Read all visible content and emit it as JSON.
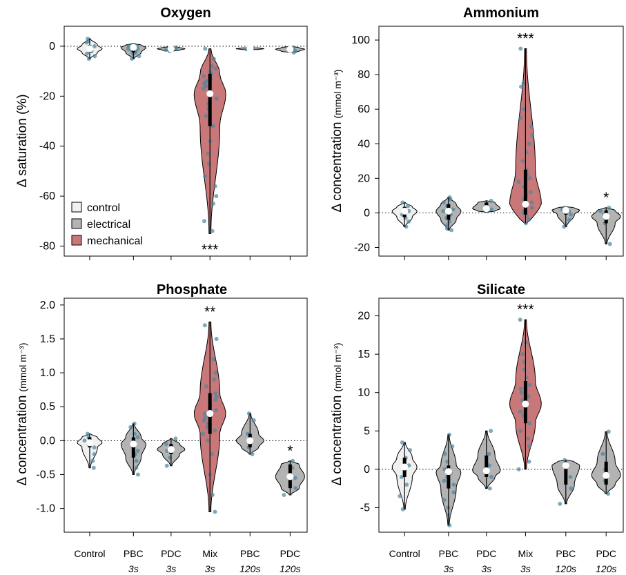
{
  "colors": {
    "control": "#f0f0f0",
    "electrical": "#b3b3b3",
    "mechanical": "#c9787a",
    "dot": "#4a86a0",
    "box": "#000000",
    "median": "#ffffff"
  },
  "legend": {
    "items": [
      {
        "label": "control",
        "group": "control"
      },
      {
        "label": "electrical",
        "group": "electrical"
      },
      {
        "label": "mechanical",
        "group": "mechanical"
      }
    ]
  },
  "x_categories": [
    {
      "name": "Control",
      "duration": ""
    },
    {
      "name": "PBC",
      "duration": "3s"
    },
    {
      "name": "PDC",
      "duration": "3s"
    },
    {
      "name": "Mix",
      "duration": "3s"
    },
    {
      "name": "PBC",
      "duration": "120s"
    },
    {
      "name": "PDC",
      "duration": "120s"
    }
  ],
  "chart_data": [
    {
      "type": "violin",
      "title": "Oxygen",
      "ylabel": "Δ saturation (%)",
      "ylabel_unit": "",
      "ylim": [
        -84,
        8
      ],
      "yticks": [
        0,
        -20,
        -40,
        -60,
        -80
      ],
      "ytick_labels": [
        "0",
        "-20",
        "-40",
        "-60",
        "-80"
      ],
      "groups": [
        "control",
        "electrical",
        "electrical",
        "mechanical",
        "electrical",
        "electrical"
      ],
      "series": [
        {
          "median": -1.0,
          "q1": -2.5,
          "q3": 0.5,
          "min": -5,
          "max": 3,
          "significance": "",
          "points": [
            3,
            1.5,
            0,
            -1,
            -2,
            -3,
            -4,
            -5,
            2,
            -1.5
          ]
        },
        {
          "median": -0.5,
          "q1": -2.5,
          "q3": 0.5,
          "min": -5,
          "max": 1,
          "significance": "",
          "points": [
            0.5,
            0,
            -0.5,
            -1,
            -1.5,
            -2,
            -2.5,
            -3,
            -4,
            -5,
            -1,
            0
          ]
        },
        {
          "median": -1.0,
          "q1": -1.6,
          "q3": -0.5,
          "min": -2,
          "max": -0.2,
          "significance": "",
          "points": [
            -0.5,
            -1,
            -1.5,
            -2
          ]
        },
        {
          "median": -19.0,
          "q1": -32.0,
          "q3": -11.0,
          "min": -75,
          "max": -1,
          "significance": "***",
          "points": [
            -1,
            -5,
            -8,
            -9,
            -10,
            -11,
            -12,
            -13,
            -14,
            -15,
            -16,
            -17,
            -19,
            -21,
            -23,
            -25,
            -28,
            -32,
            -38,
            -43,
            -47,
            -52,
            -56,
            -60,
            -63,
            -70,
            -74
          ]
        },
        {
          "median": -1.0,
          "q1": -1.3,
          "q3": -0.7,
          "min": -1.4,
          "max": -0.6,
          "significance": "",
          "points": [
            -0.8,
            -1,
            -1.2
          ]
        },
        {
          "median": -1.2,
          "q1": -2.0,
          "q3": -0.6,
          "min": -2.5,
          "max": 0,
          "significance": "",
          "points": [
            -0.5,
            -1,
            -1.5,
            -2,
            -2.5
          ]
        }
      ]
    },
    {
      "type": "violin",
      "title": "Ammonium",
      "ylabel": "Δ concentration",
      "ylabel_unit": "(mmol m⁻³)",
      "ylim": [
        -25,
        108
      ],
      "yticks": [
        100,
        80,
        60,
        40,
        20,
        0,
        -20
      ],
      "ytick_labels": [
        "100",
        "80",
        "60",
        "40",
        "20",
        "0",
        "-20"
      ],
      "groups": [
        "control",
        "electrical",
        "electrical",
        "mechanical",
        "electrical",
        "electrical"
      ],
      "series": [
        {
          "median": 1.0,
          "q1": -2.5,
          "q3": 3.5,
          "min": -8,
          "max": 6,
          "significance": "",
          "points": [
            6,
            4,
            2,
            1,
            -1,
            -3,
            -5,
            -8
          ]
        },
        {
          "median": 1.0,
          "q1": -4.0,
          "q3": 5.0,
          "min": -10,
          "max": 9,
          "significance": "",
          "points": [
            9,
            8,
            6,
            4,
            2,
            1,
            0,
            -1,
            -3,
            -5,
            -7,
            -9,
            -10
          ]
        },
        {
          "median": 2.5,
          "q1": 1.0,
          "q3": 6.0,
          "min": 0.5,
          "max": 7,
          "significance": "",
          "points": [
            7,
            5,
            3,
            2,
            1
          ]
        },
        {
          "median": 5.0,
          "q1": -1.0,
          "q3": 25.0,
          "min": -6,
          "max": 95,
          "significance": "***",
          "points": [
            95,
            75,
            73,
            60,
            55,
            50,
            45,
            40,
            35,
            30,
            25,
            22,
            20,
            18,
            15,
            12,
            10,
            8,
            6,
            5,
            3,
            1,
            0,
            -2,
            -4,
            -6
          ]
        },
        {
          "median": 1.5,
          "q1": -1.0,
          "q3": 3.0,
          "min": -8,
          "max": 3.5,
          "significance": "",
          "points": [
            3,
            2,
            1,
            -1,
            -4,
            -8
          ]
        },
        {
          "median": -2.0,
          "q1": -6.0,
          "q3": 1.5,
          "min": -18,
          "max": 3,
          "significance": "*",
          "points": [
            3,
            1,
            -1,
            -3,
            -6,
            -18
          ]
        }
      ]
    },
    {
      "type": "violin",
      "title": "Phosphate",
      "ylabel": "Δ concentration",
      "ylabel_unit": "(mmol m⁻³)",
      "ylim": [
        -1.35,
        2.1
      ],
      "yticks": [
        2.0,
        1.5,
        1.0,
        0.5,
        0.0,
        -0.5,
        -1.0
      ],
      "ytick_labels": [
        "2.0",
        "1.5",
        "1.0",
        "0.5",
        "0.0",
        "-0.5",
        "-1.0"
      ],
      "groups": [
        "control",
        "electrical",
        "electrical",
        "mechanical",
        "electrical",
        "electrical"
      ],
      "series": [
        {
          "median": -0.03,
          "q1": -0.1,
          "q3": 0.05,
          "min": -0.4,
          "max": 0.1,
          "significance": "",
          "points": [
            0.1,
            0.05,
            0,
            -0.05,
            -0.1,
            -0.2,
            -0.3,
            -0.4
          ]
        },
        {
          "median": -0.05,
          "q1": -0.25,
          "q3": 0.05,
          "min": -0.5,
          "max": 0.25,
          "significance": "",
          "points": [
            0.25,
            0.2,
            0.1,
            0.05,
            0,
            -0.05,
            -0.1,
            -0.15,
            -0.2,
            -0.3,
            -0.4,
            -0.5
          ]
        },
        {
          "median": -0.13,
          "q1": -0.2,
          "q3": -0.05,
          "min": -0.37,
          "max": 0.03,
          "significance": "",
          "points": [
            0.03,
            -0.05,
            -0.15,
            -0.25,
            -0.37
          ]
        },
        {
          "median": 0.4,
          "q1": 0.1,
          "q3": 0.7,
          "min": -1.05,
          "max": 1.75,
          "significance": "**",
          "points": [
            1.7,
            1.5,
            1.2,
            1.0,
            0.9,
            0.8,
            0.7,
            0.65,
            0.6,
            0.5,
            0.45,
            0.4,
            0.35,
            0.3,
            0.25,
            0.2,
            0.15,
            0.1,
            0,
            -0.2,
            -0.5,
            -0.8,
            -1.05
          ]
        },
        {
          "median": 0.0,
          "q1": -0.1,
          "q3": 0.1,
          "min": -0.2,
          "max": 0.4,
          "significance": "",
          "points": [
            0.4,
            0.3,
            0.1,
            0,
            -0.1,
            -0.2
          ]
        },
        {
          "median": -0.53,
          "q1": -0.7,
          "q3": -0.35,
          "min": -0.8,
          "max": -0.3,
          "significance": "*",
          "points": [
            -0.3,
            -0.4,
            -0.55,
            -0.7,
            -0.8
          ]
        }
      ]
    },
    {
      "type": "violin",
      "title": "Silicate",
      "ylabel": "Δ concentration",
      "ylabel_unit": "(mmol m⁻³)",
      "ylim": [
        -8.2,
        22.3
      ],
      "yticks": [
        20,
        15,
        10,
        5,
        0,
        -5
      ],
      "ytick_labels": [
        "20",
        "15",
        "10",
        "5",
        "0",
        "-5"
      ],
      "groups": [
        "control",
        "electrical",
        "electrical",
        "mechanical",
        "electrical",
        "electrical"
      ],
      "series": [
        {
          "median": 0.3,
          "q1": -1.0,
          "q3": 1.5,
          "min": -5.2,
          "max": 3.5,
          "significance": "",
          "points": [
            3.5,
            2.5,
            1.5,
            0.5,
            0,
            -1,
            -2,
            -3.5,
            -5.2
          ]
        },
        {
          "median": -0.3,
          "q1": -2.5,
          "q3": 0.5,
          "min": -7.3,
          "max": 4.5,
          "significance": "",
          "points": [
            4.5,
            3,
            2,
            1,
            0,
            -0.5,
            -1,
            -1.5,
            -2,
            -3,
            -4,
            -5,
            -6,
            -7.3
          ]
        },
        {
          "median": -0.2,
          "q1": -1.0,
          "q3": 1.8,
          "min": -2.5,
          "max": 5.0,
          "significance": "",
          "points": [
            5,
            2,
            0.5,
            -1,
            -2.5
          ]
        },
        {
          "median": 8.5,
          "q1": 6.0,
          "q3": 11.5,
          "min": 0,
          "max": 19.5,
          "significance": "***",
          "points": [
            19.5,
            16.5,
            15,
            14,
            13,
            12,
            11,
            10.5,
            10,
            9.5,
            9,
            8.5,
            8,
            7.5,
            7,
            6,
            5,
            4,
            3,
            1,
            0
          ]
        },
        {
          "median": 0.5,
          "q1": -2.0,
          "q3": 1.0,
          "min": -4.5,
          "max": 1.2,
          "significance": "",
          "points": [
            1.2,
            0.5,
            -1,
            -2.5,
            -4.5
          ]
        },
        {
          "median": -0.8,
          "q1": -2.0,
          "q3": 1.0,
          "min": -3.2,
          "max": 4.9,
          "significance": "",
          "points": [
            4.9,
            2,
            0,
            -1.5,
            -3.2
          ]
        }
      ]
    }
  ]
}
